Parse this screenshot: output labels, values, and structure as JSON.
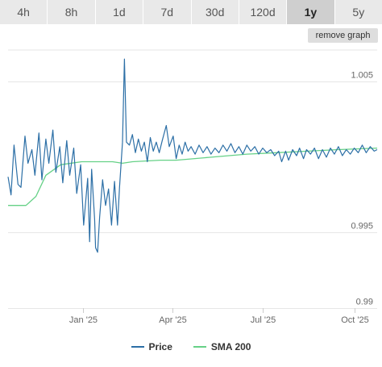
{
  "ranges": {
    "tabs": [
      {
        "label": "4h",
        "active": false
      },
      {
        "label": "8h",
        "active": false
      },
      {
        "label": "1d",
        "active": false
      },
      {
        "label": "7d",
        "active": false
      },
      {
        "label": "30d",
        "active": false
      },
      {
        "label": "120d",
        "active": false
      },
      {
        "label": "1y",
        "active": true
      },
      {
        "label": "5y",
        "active": false
      }
    ],
    "remove_graph_label": "remove graph"
  },
  "colors": {
    "price": "#2c6fa6",
    "sma": "#66d187",
    "grid": "#e6e6e6"
  },
  "chart_data": {
    "type": "line",
    "title": "",
    "xlabel": "",
    "ylabel": "",
    "ylim": [
      0.99,
      1.0071
    ],
    "xlim": [
      "2024-10-18",
      "2025-10-24"
    ],
    "y_ticks": [
      {
        "value": 1.005,
        "label": "1.005"
      },
      {
        "value": 0.995,
        "label": "0.995"
      },
      {
        "value": 0.99,
        "label": "0.99"
      }
    ],
    "x_ticks": [
      {
        "date": "2025-01-01",
        "label": "Jan '25"
      },
      {
        "date": "2025-04-01",
        "label": "Apr '25"
      },
      {
        "date": "2025-07-01",
        "label": "Jul '25"
      },
      {
        "date": "2025-10-01",
        "label": "Oct '25"
      }
    ],
    "legend_position": "bottom-center",
    "grid": true,
    "series": [
      {
        "name": "Price",
        "points": [
          [
            "2024-10-18",
            0.9987
          ],
          [
            "2024-10-21",
            0.9975
          ],
          [
            "2024-10-24",
            1.0008
          ],
          [
            "2024-10-28",
            0.9982
          ],
          [
            "2024-10-31",
            0.998
          ],
          [
            "2024-11-04",
            1.0014
          ],
          [
            "2024-11-07",
            0.9996
          ],
          [
            "2024-11-11",
            1.0005
          ],
          [
            "2024-11-14",
            0.9988
          ],
          [
            "2024-11-18",
            1.0016
          ],
          [
            "2024-11-21",
            0.9985
          ],
          [
            "2024-11-25",
            1.0012
          ],
          [
            "2024-11-28",
            0.9996
          ],
          [
            "2024-12-02",
            1.0018
          ],
          [
            "2024-12-05",
            0.999
          ],
          [
            "2024-12-09",
            1.0007
          ],
          [
            "2024-12-12",
            0.9983
          ],
          [
            "2024-12-16",
            1.0011
          ],
          [
            "2024-12-19",
            0.9988
          ],
          [
            "2024-12-23",
            1.0006
          ],
          [
            "2024-12-26",
            0.9976
          ],
          [
            "2024-12-30",
            0.9995
          ],
          [
            "2025-01-02",
            0.9955
          ],
          [
            "2025-01-06",
            0.9986
          ],
          [
            "2025-01-08",
            0.9944
          ],
          [
            "2025-01-10",
            0.9992
          ],
          [
            "2025-01-13",
            0.9959
          ],
          [
            "2025-01-14",
            0.994
          ],
          [
            "2025-01-16",
            0.9937
          ],
          [
            "2025-01-18",
            0.996
          ],
          [
            "2025-01-21",
            0.9985
          ],
          [
            "2025-01-24",
            0.9968
          ],
          [
            "2025-01-27",
            0.9979
          ],
          [
            "2025-01-30",
            0.9955
          ],
          [
            "2025-02-02",
            0.9984
          ],
          [
            "2025-02-05",
            0.9955
          ],
          [
            "2025-02-07",
            0.998
          ],
          [
            "2025-02-10",
            1.001
          ],
          [
            "2025-02-12",
            1.0065
          ],
          [
            "2025-02-14",
            1.001
          ],
          [
            "2025-02-17",
            1.0008
          ],
          [
            "2025-02-20",
            1.0015
          ],
          [
            "2025-02-23",
            1.0003
          ],
          [
            "2025-02-26",
            1.0012
          ],
          [
            "2025-03-01",
            1.0004
          ],
          [
            "2025-03-04",
            1.001
          ],
          [
            "2025-03-07",
            0.9997
          ],
          [
            "2025-03-10",
            1.0013
          ],
          [
            "2025-03-13",
            1.0004
          ],
          [
            "2025-03-16",
            1.001
          ],
          [
            "2025-03-19",
            1.0003
          ],
          [
            "2025-03-22",
            1.0011
          ],
          [
            "2025-03-26",
            1.0021
          ],
          [
            "2025-03-29",
            1.0007
          ],
          [
            "2025-04-02",
            1.0014
          ],
          [
            "2025-04-05",
            0.9999
          ],
          [
            "2025-04-08",
            1.0008
          ],
          [
            "2025-04-11",
            1.0002
          ],
          [
            "2025-04-14",
            1.001
          ],
          [
            "2025-04-17",
            1.0004
          ],
          [
            "2025-04-20",
            1.0007
          ],
          [
            "2025-04-24",
            1.0002
          ],
          [
            "2025-04-28",
            1.0008
          ],
          [
            "2025-05-02",
            1.0003
          ],
          [
            "2025-05-06",
            1.0007
          ],
          [
            "2025-05-10",
            1.0002
          ],
          [
            "2025-05-14",
            1.0006
          ],
          [
            "2025-05-18",
            1.0003
          ],
          [
            "2025-05-22",
            1.0008
          ],
          [
            "2025-05-26",
            1.0004
          ],
          [
            "2025-05-30",
            1.0009
          ],
          [
            "2025-06-03",
            1.0003
          ],
          [
            "2025-06-07",
            1.0007
          ],
          [
            "2025-06-11",
            1.0002
          ],
          [
            "2025-06-15",
            1.0008
          ],
          [
            "2025-06-19",
            1.0004
          ],
          [
            "2025-06-23",
            1.0007
          ],
          [
            "2025-06-27",
            1.0002
          ],
          [
            "2025-07-01",
            1.0006
          ],
          [
            "2025-07-05",
            1.0003
          ],
          [
            "2025-07-09",
            1.0005
          ],
          [
            "2025-07-13",
            1.0001
          ],
          [
            "2025-07-17",
            1.0004
          ],
          [
            "2025-07-20",
            0.9997
          ],
          [
            "2025-07-24",
            1.0004
          ],
          [
            "2025-07-27",
            0.9998
          ],
          [
            "2025-07-31",
            1.0005
          ],
          [
            "2025-08-04",
            1.0001
          ],
          [
            "2025-08-07",
            1.0006
          ],
          [
            "2025-08-11",
            0.9999
          ],
          [
            "2025-08-14",
            1.0005
          ],
          [
            "2025-08-18",
            1.0002
          ],
          [
            "2025-08-22",
            1.0006
          ],
          [
            "2025-08-26",
            0.9999
          ],
          [
            "2025-08-30",
            1.0005
          ],
          [
            "2025-09-03",
            1.0
          ],
          [
            "2025-09-07",
            1.0006
          ],
          [
            "2025-09-11",
            1.0002
          ],
          [
            "2025-09-15",
            1.0007
          ],
          [
            "2025-09-19",
            1.0001
          ],
          [
            "2025-09-23",
            1.0005
          ],
          [
            "2025-09-27",
            1.0002
          ],
          [
            "2025-10-01",
            1.0006
          ],
          [
            "2025-10-05",
            1.0003
          ],
          [
            "2025-10-09",
            1.0008
          ],
          [
            "2025-10-13",
            1.0003
          ],
          [
            "2025-10-17",
            1.0007
          ],
          [
            "2025-10-21",
            1.0004
          ],
          [
            "2025-10-24",
            1.0005
          ]
        ]
      },
      {
        "name": "SMA 200",
        "points": [
          [
            "2024-10-18",
            0.9968
          ],
          [
            "2024-11-05",
            0.9968
          ],
          [
            "2024-11-15",
            0.9974
          ],
          [
            "2024-11-25",
            0.9988
          ],
          [
            "2024-12-10",
            0.9995
          ],
          [
            "2024-12-31",
            0.9997
          ],
          [
            "2025-01-31",
            0.9997
          ],
          [
            "2025-02-10",
            0.9996
          ],
          [
            "2025-02-20",
            0.9997
          ],
          [
            "2025-03-20",
            0.9998
          ],
          [
            "2025-04-05",
            0.9998
          ],
          [
            "2025-05-10",
            1.0
          ],
          [
            "2025-06-15",
            1.0002
          ],
          [
            "2025-07-15",
            1.0003
          ],
          [
            "2025-08-15",
            1.0004
          ],
          [
            "2025-09-15",
            1.0005
          ],
          [
            "2025-10-24",
            1.0006
          ]
        ]
      }
    ]
  }
}
